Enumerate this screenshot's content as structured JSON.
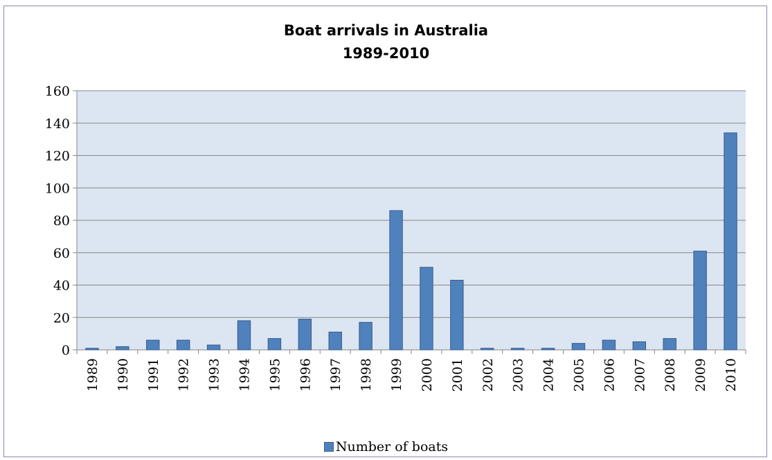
{
  "chart_data": {
    "type": "bar",
    "title": [
      "Boat arrivals in Australia",
      "1989-2010"
    ],
    "categories": [
      "1989",
      "1990",
      "1991",
      "1992",
      "1993",
      "1994",
      "1995",
      "1996",
      "1997",
      "1998",
      "1999",
      "2000",
      "2001",
      "2002",
      "2003",
      "2004",
      "2005",
      "2006",
      "2007",
      "2008",
      "2009",
      "2010"
    ],
    "series": [
      {
        "name": "Number of boats",
        "values": [
          1,
          2,
          6,
          6,
          3,
          18,
          7,
          19,
          11,
          17,
          86,
          51,
          43,
          1,
          1,
          1,
          4,
          6,
          5,
          7,
          61,
          134
        ]
      }
    ],
    "ylim": [
      0,
      160
    ],
    "yticks": [
      0,
      20,
      40,
      60,
      80,
      100,
      120,
      140,
      160
    ],
    "grid": true,
    "legend": "bottom",
    "colors": {
      "bar": "#4f81bd",
      "bar_edge": "#385d8a",
      "plot_bg": "#dce6f2",
      "grid": "#868686"
    }
  }
}
